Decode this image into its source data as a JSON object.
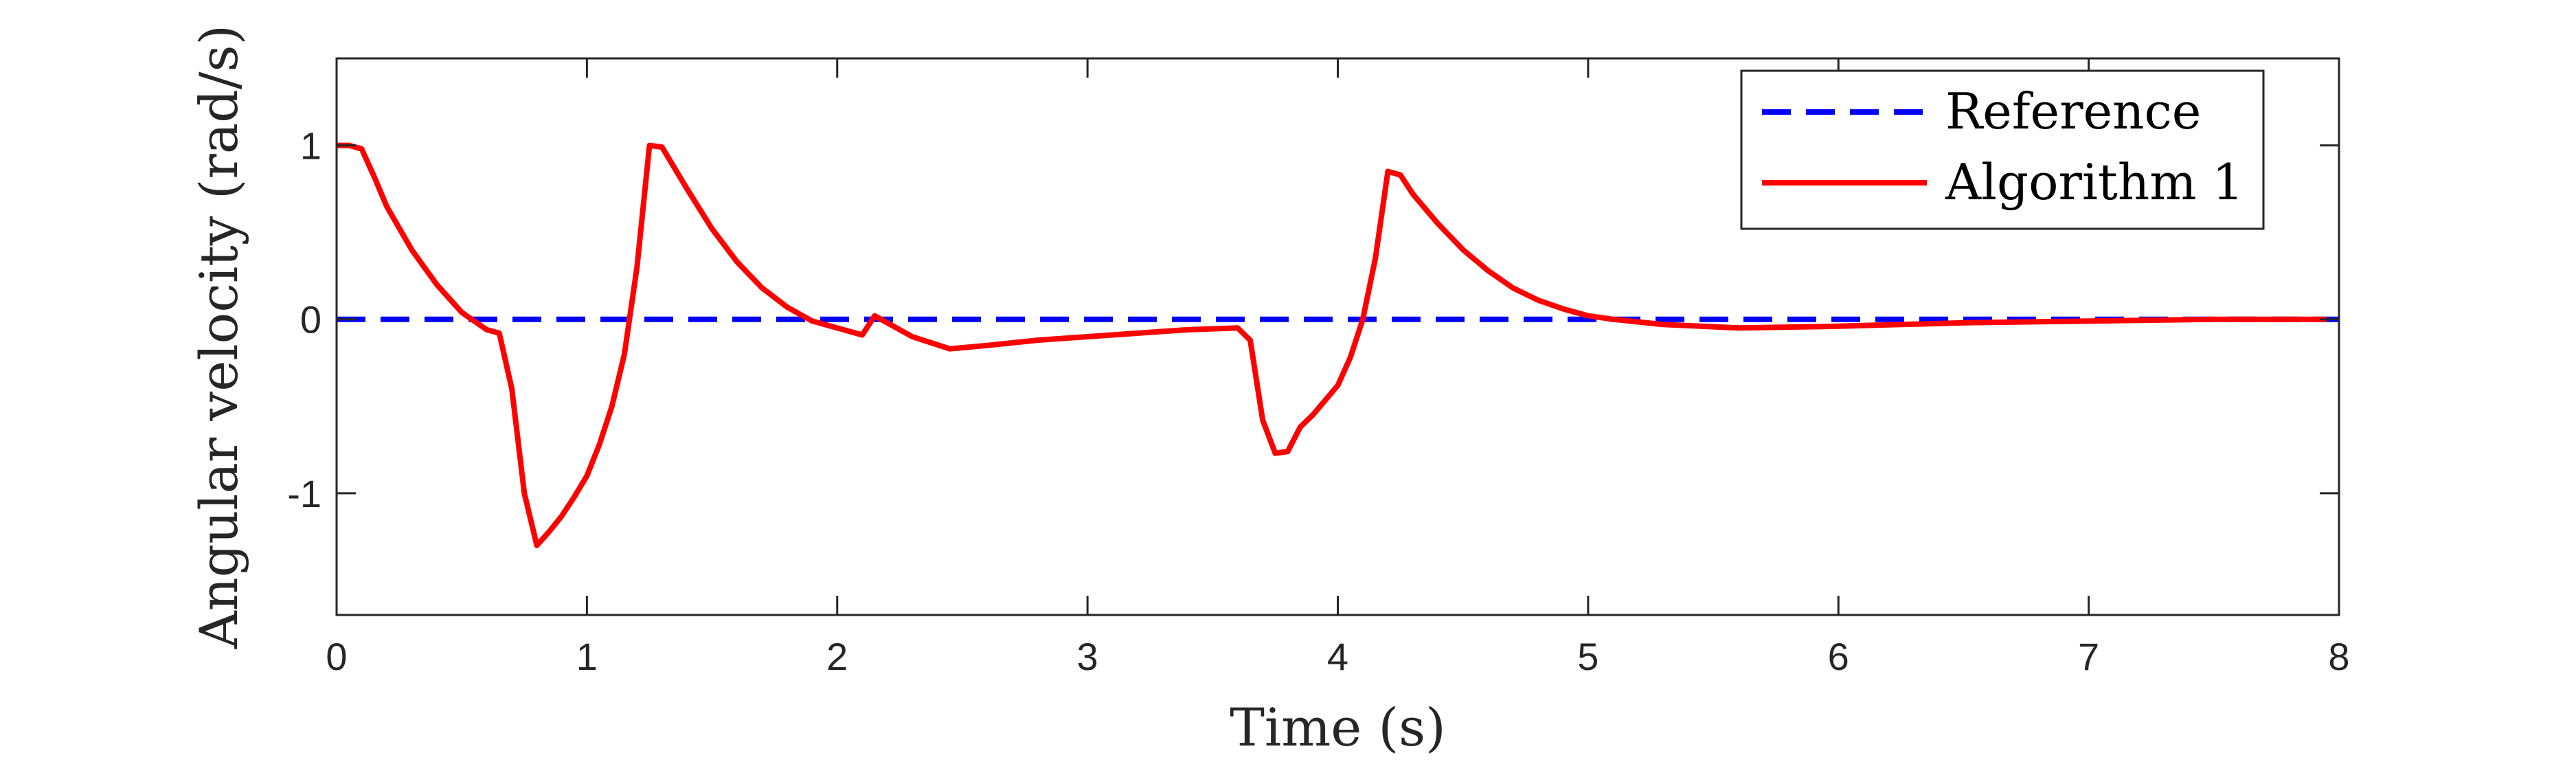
{
  "chart_data": {
    "type": "line",
    "title": "",
    "xlabel": "Time (s)",
    "ylabel": "Angular velocity (rad/s)",
    "xlim": [
      0,
      8
    ],
    "ylim": [
      -1.7,
      1.5
    ],
    "xticks": [
      "0",
      "1",
      "2",
      "3",
      "4",
      "5",
      "6",
      "7",
      "8"
    ],
    "yticks": [
      "1",
      "0",
      "-1"
    ],
    "grid": false,
    "legend_position": "top-right",
    "series": [
      {
        "name": "Reference",
        "color": "#0000ff",
        "style": "dash-dot",
        "x": [
          0,
          8
        ],
        "y": [
          0,
          0
        ]
      },
      {
        "name": "Algorithm 1",
        "color": "#ff0000",
        "style": "solid",
        "x": [
          0,
          0.05,
          0.1,
          0.15,
          0.2,
          0.3,
          0.4,
          0.5,
          0.6,
          0.65,
          0.7,
          0.75,
          0.8,
          0.85,
          0.9,
          0.95,
          1.0,
          1.05,
          1.1,
          1.15,
          1.2,
          1.25,
          1.3,
          1.4,
          1.5,
          1.6,
          1.7,
          1.8,
          1.9,
          2.0,
          2.1,
          2.15,
          2.2,
          2.3,
          2.45,
          2.6,
          2.8,
          3.0,
          3.2,
          3.4,
          3.6,
          3.65,
          3.7,
          3.75,
          3.8,
          3.85,
          3.9,
          4.0,
          4.05,
          4.1,
          4.15,
          4.2,
          4.25,
          4.3,
          4.4,
          4.5,
          4.6,
          4.7,
          4.8,
          4.9,
          5.0,
          5.1,
          5.3,
          5.6,
          6.0,
          6.5,
          7.0,
          7.5,
          7.95
        ],
        "y": [
          1.0,
          1.0,
          0.98,
          0.82,
          0.65,
          0.4,
          0.2,
          0.04,
          -0.06,
          -0.08,
          -0.4,
          -1.0,
          -1.3,
          -1.22,
          -1.13,
          -1.02,
          -0.9,
          -0.72,
          -0.5,
          -0.2,
          0.3,
          1.0,
          0.99,
          0.75,
          0.52,
          0.33,
          0.18,
          0.07,
          -0.01,
          -0.05,
          -0.09,
          0.02,
          -0.02,
          -0.1,
          -0.17,
          -0.15,
          -0.12,
          -0.1,
          -0.08,
          -0.06,
          -0.05,
          -0.12,
          -0.58,
          -0.77,
          -0.76,
          -0.62,
          -0.55,
          -0.38,
          -0.22,
          0.0,
          0.35,
          0.85,
          0.83,
          0.72,
          0.55,
          0.4,
          0.28,
          0.18,
          0.11,
          0.06,
          0.02,
          0.0,
          -0.03,
          -0.05,
          -0.04,
          -0.02,
          -0.01,
          0.0,
          0.0
        ]
      }
    ]
  }
}
